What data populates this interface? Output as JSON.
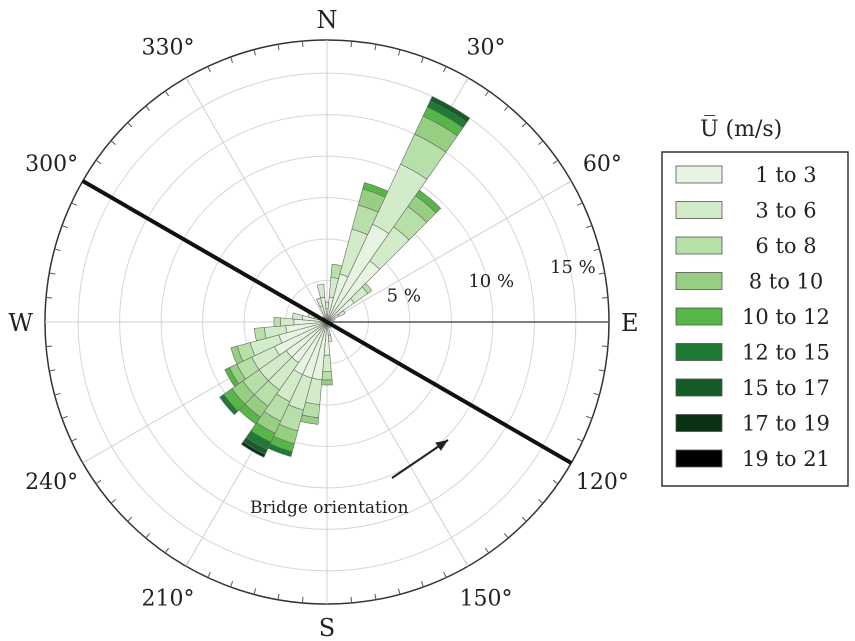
{
  "chart_data": {
    "type": "wind-rose",
    "cardinal_labels": {
      "n": "N",
      "e": "E",
      "s": "S",
      "w": "W"
    },
    "degree_labels": [
      {
        "angle": 30,
        "text": "30°"
      },
      {
        "angle": 60,
        "text": "60°"
      },
      {
        "angle": 120,
        "text": "120°"
      },
      {
        "angle": 150,
        "text": "150°"
      },
      {
        "angle": 210,
        "text": "210°"
      },
      {
        "angle": 240,
        "text": "240°"
      },
      {
        "angle": 300,
        "text": "300°"
      },
      {
        "angle": 330,
        "text": "330°"
      }
    ],
    "radial_axis": {
      "unit": "%",
      "max": 17,
      "ticks": [
        {
          "value": 5,
          "label": "5 %"
        },
        {
          "value": 10,
          "label": "10 %"
        },
        {
          "value": 15,
          "label": "15 %"
        }
      ],
      "label_angle": 80
    },
    "sector_width_deg": 10,
    "legend": {
      "title": "U̅ (m/s)",
      "entries": [
        {
          "label": "1 to 3",
          "color": "#e6f4e1"
        },
        {
          "label": "3 to 6",
          "color": "#d2ebc9"
        },
        {
          "label": "6 to 8",
          "color": "#b7dfa8"
        },
        {
          "label": "8 to 10",
          "color": "#96cf82"
        },
        {
          "label": "10 to 12",
          "color": "#56b648"
        },
        {
          "label": "12 to 15",
          "color": "#1f7a35"
        },
        {
          "label": "15 to 17",
          "color": "#155c27"
        },
        {
          "label": "17 to 19",
          "color": "#0a3314"
        },
        {
          "label": "19 to 21",
          "color": "#000000"
        }
      ]
    },
    "sectors": [
      {
        "direction": 0,
        "bins": [
          0.8,
          0.4
        ]
      },
      {
        "direction": 10,
        "bins": [
          1.5,
          1.2,
          0.8
        ]
      },
      {
        "direction": 20,
        "bins": [
          3.0,
          2.8,
          1.5,
          1.0,
          0.4
        ]
      },
      {
        "direction": 30,
        "bins": [
          6.5,
          4.0,
          2.0,
          1.2,
          0.6,
          0.4,
          0.3
        ]
      },
      {
        "direction": 40,
        "bins": [
          4.5,
          2.5,
          1.5,
          0.8,
          0.4
        ]
      },
      {
        "direction": 50,
        "bins": [
          2.0,
          1.0,
          0.3
        ]
      },
      {
        "direction": 60,
        "bins": [
          0.8,
          0.4
        ]
      },
      {
        "direction": 70,
        "bins": [
          0.5
        ]
      },
      {
        "direction": 80,
        "bins": [
          0.3
        ]
      },
      {
        "direction": 120,
        "bins": [
          0.3
        ]
      },
      {
        "direction": 150,
        "bins": [
          0.4
        ]
      },
      {
        "direction": 170,
        "bins": [
          0.8,
          0.4
        ]
      },
      {
        "direction": 180,
        "bins": [
          2.0,
          1.0,
          0.5,
          0.3
        ]
      },
      {
        "direction": 190,
        "bins": [
          3.5,
          1.5,
          0.8,
          0.4
        ]
      },
      {
        "direction": 200,
        "bins": [
          3.5,
          2.0,
          1.3,
          0.8,
          0.5,
          0.3
        ]
      },
      {
        "direction": 210,
        "bins": [
          3.5,
          1.8,
          1.3,
          0.8,
          0.6,
          0.5,
          0.3,
          0.2
        ]
      },
      {
        "direction": 220,
        "bins": [
          3.0,
          2.0,
          1.2,
          0.8,
          0.5
        ]
      },
      {
        "direction": 230,
        "bins": [
          3.0,
          2.0,
          1.2,
          0.8,
          0.6,
          0.3
        ]
      },
      {
        "direction": 240,
        "bins": [
          3.5,
          1.5,
          1.0,
          0.5,
          0.3
        ]
      },
      {
        "direction": 250,
        "bins": [
          3.0,
          1.8,
          0.8,
          0.4
        ]
      },
      {
        "direction": 260,
        "bins": [
          2.5,
          1.3,
          0.6
        ]
      },
      {
        "direction": 270,
        "bins": [
          2.0,
          0.8,
          0.4
        ]
      },
      {
        "direction": 280,
        "bins": [
          1.5,
          0.6
        ]
      },
      {
        "direction": 290,
        "bins": [
          0.8,
          0.4
        ]
      },
      {
        "direction": 300,
        "bins": [
          0.5
        ]
      },
      {
        "direction": 310,
        "bins": [
          0.4
        ]
      },
      {
        "direction": 320,
        "bins": [
          0.4
        ]
      },
      {
        "direction": 330,
        "bins": [
          0.3
        ]
      },
      {
        "direction": 340,
        "bins": [
          1.0,
          0.5
        ]
      },
      {
        "direction": 350,
        "bins": [
          1.5,
          0.8
        ]
      }
    ],
    "bridge": {
      "angle": 300,
      "label": "Bridge orientation"
    }
  }
}
